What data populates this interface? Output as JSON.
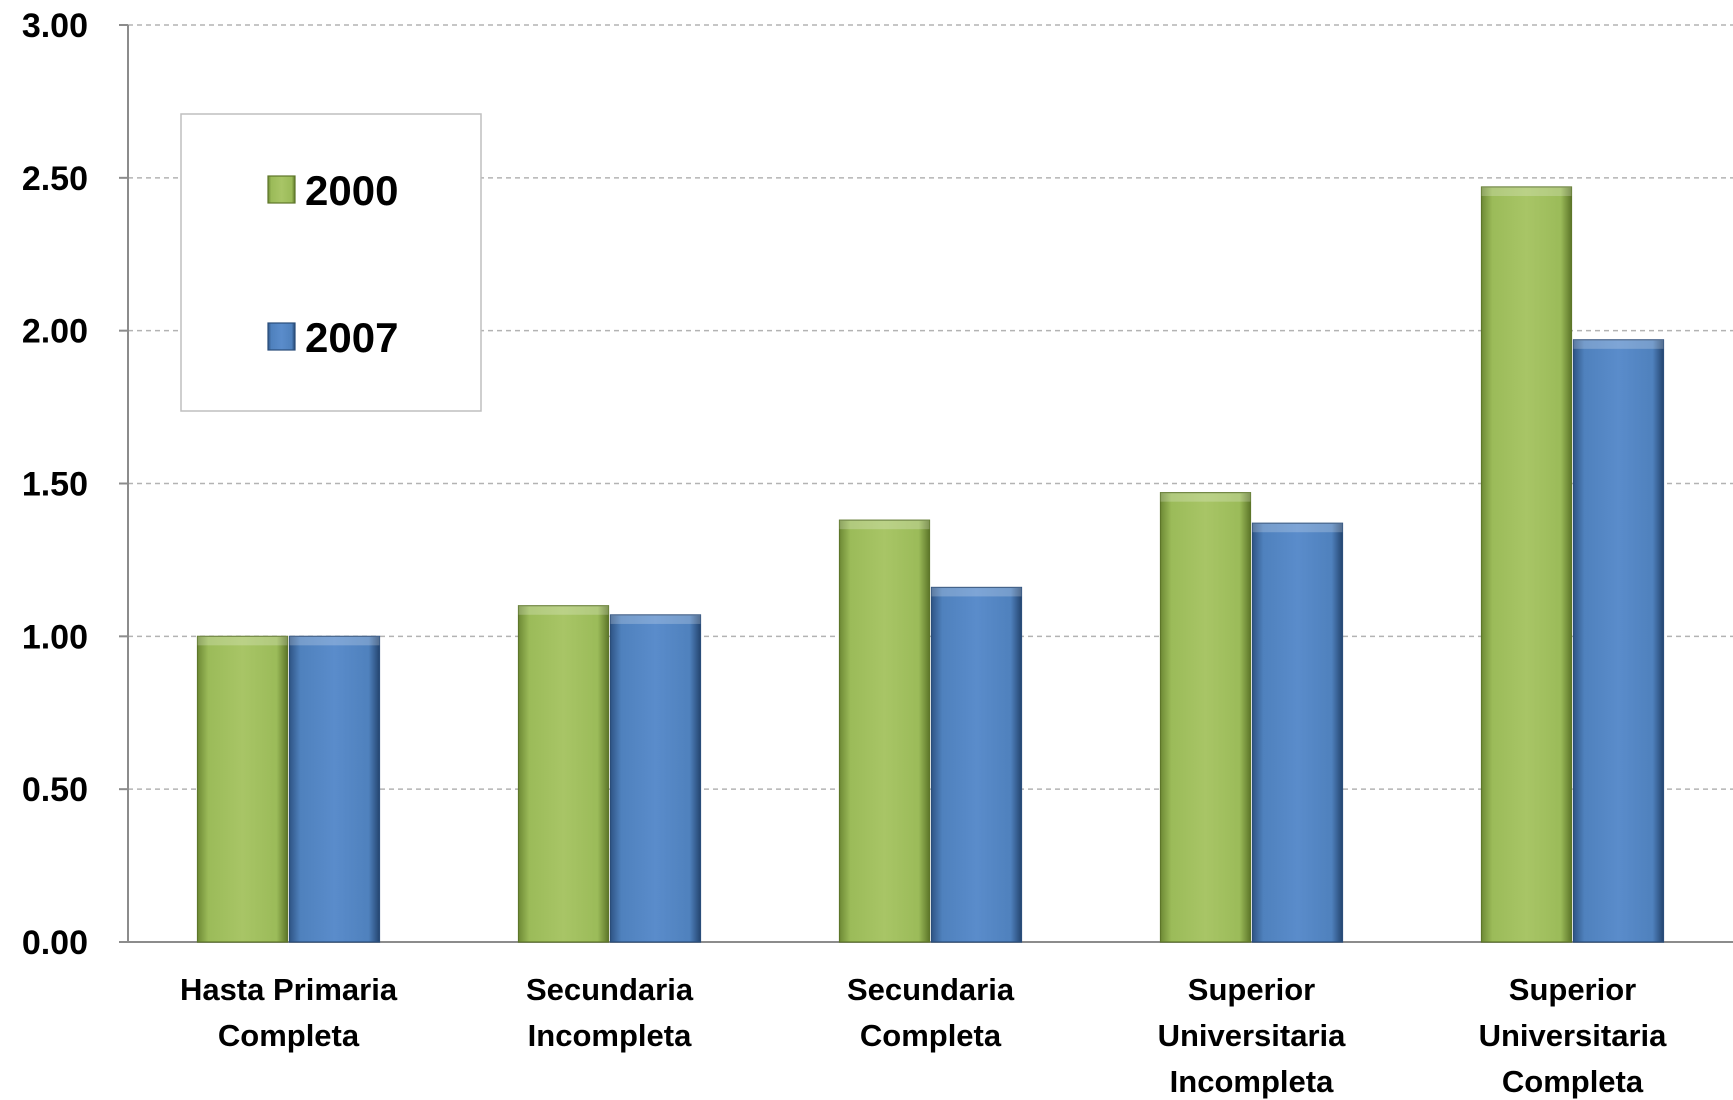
{
  "chart_data": {
    "type": "bar",
    "title": "",
    "xlabel": "",
    "ylabel": "",
    "ylim": [
      0,
      3
    ],
    "y_ticks": [
      "0.00",
      "0.50",
      "1.00",
      "1.50",
      "2.00",
      "2.50",
      "3.00"
    ],
    "grid": true,
    "legend_position": "top-left",
    "categories": [
      [
        "Hasta Primaria",
        "Completa"
      ],
      [
        "Secundaria",
        "Incompleta"
      ],
      [
        "Secundaria",
        "Completa"
      ],
      [
        "Superior",
        "Universitaria",
        "Incompleta"
      ],
      [
        "Superior",
        "Universitaria",
        "Completa"
      ]
    ],
    "series": [
      {
        "name": "2000",
        "color": "#9BBB59",
        "values": [
          1.0,
          1.1,
          1.38,
          1.47,
          2.47
        ]
      },
      {
        "name": "2007",
        "color": "#4F81BD",
        "values": [
          1.0,
          1.07,
          1.16,
          1.37,
          1.97
        ]
      }
    ]
  }
}
